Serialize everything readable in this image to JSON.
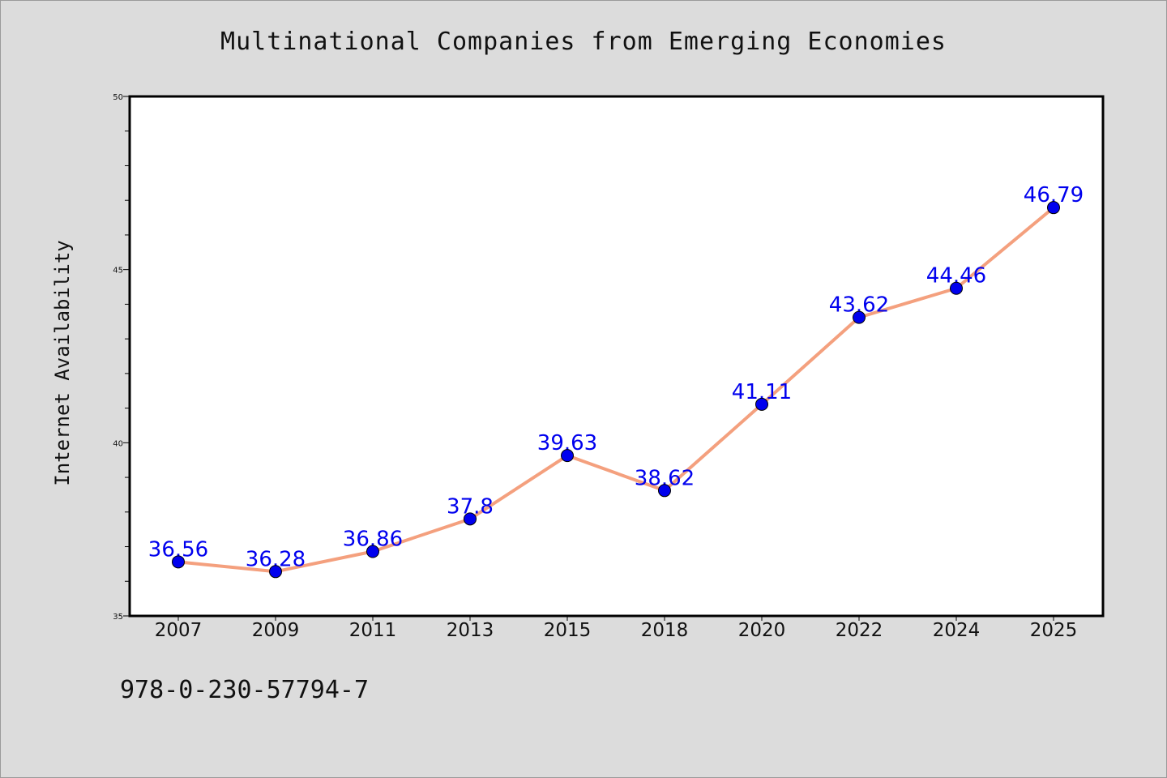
{
  "chart_data": {
    "type": "line",
    "title": "Multinational Companies from Emerging Economies",
    "xlabel": "",
    "ylabel": "Internet Availability",
    "categories": [
      "2007",
      "2009",
      "2011",
      "2013",
      "2015",
      "2018",
      "2020",
      "2022",
      "2024",
      "2025"
    ],
    "series": [
      {
        "values": [
          36.56,
          36.28,
          36.86,
          37.8,
          39.63,
          38.62,
          41.11,
          43.62,
          44.46,
          46.79
        ]
      }
    ],
    "data_labels": [
      "36.56",
      "36.28",
      "36.86",
      "37.8",
      "39.63",
      "38.62",
      "41.11",
      "43.62",
      "44.46",
      "46.79"
    ],
    "ylim": [
      35,
      50
    ],
    "yticks": [
      "35",
      "40",
      "45",
      "50"
    ],
    "grid": false,
    "colors": {
      "line": "#f4a07e",
      "marker": "#0000ee",
      "data_label": "#0000ee",
      "plot_background": "#ffffff",
      "page_background": "#dcdcdc"
    }
  },
  "footer": {
    "code": "978-0-230-57794-7"
  }
}
